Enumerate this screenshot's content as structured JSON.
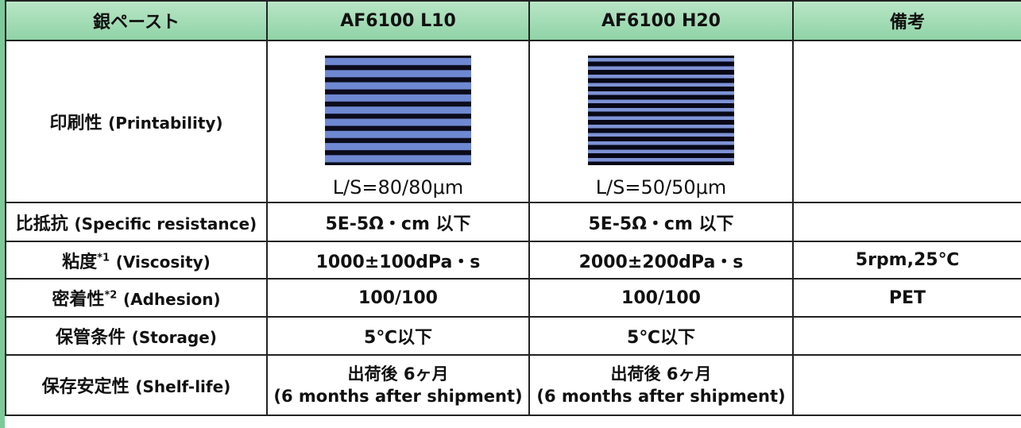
{
  "table": {
    "header": [
      "銀ペースト",
      "AF6100 L10",
      "AF6100 H20",
      "備考"
    ],
    "rows": [
      {
        "label": {
          "main": "印刷性",
          "en": "(Printability)"
        },
        "cells": [
          "L/S=80/80μm",
          "L/S=50/50μm"
        ]
      },
      {
        "label": {
          "main": "比抵抗",
          "en": "(Specific resistance)"
        },
        "cells": [
          "5E-5Ω・cm 以下",
          "5E-5Ω・cm 以下"
        ]
      },
      {
        "label": {
          "main": "粘度",
          "note": "*1",
          "en": "(Viscosity)"
        },
        "cells": [
          "1000±100dPa・s",
          "2000±200dPa・s"
        ],
        "remark": "5rpm,25℃"
      },
      {
        "label": {
          "main": "密着性",
          "note": "*2",
          "en": "(Adhesion)"
        },
        "cells": [
          "100/100",
          "100/100"
        ],
        "remark": "PET"
      },
      {
        "label": {
          "main": "保管条件",
          "en": "(Storage)"
        },
        "cells": [
          "5℃以下",
          "5℃以下"
        ]
      },
      {
        "label": {
          "main": "保存安定性",
          "en": "(Shelf-life)"
        },
        "cells": [
          [
            "出荷後 6ヶ月",
            "(6 months after shipment)"
          ],
          [
            "出荷後 6ヶ月",
            "(6 months after shipment)"
          ]
        ]
      }
    ]
  }
}
